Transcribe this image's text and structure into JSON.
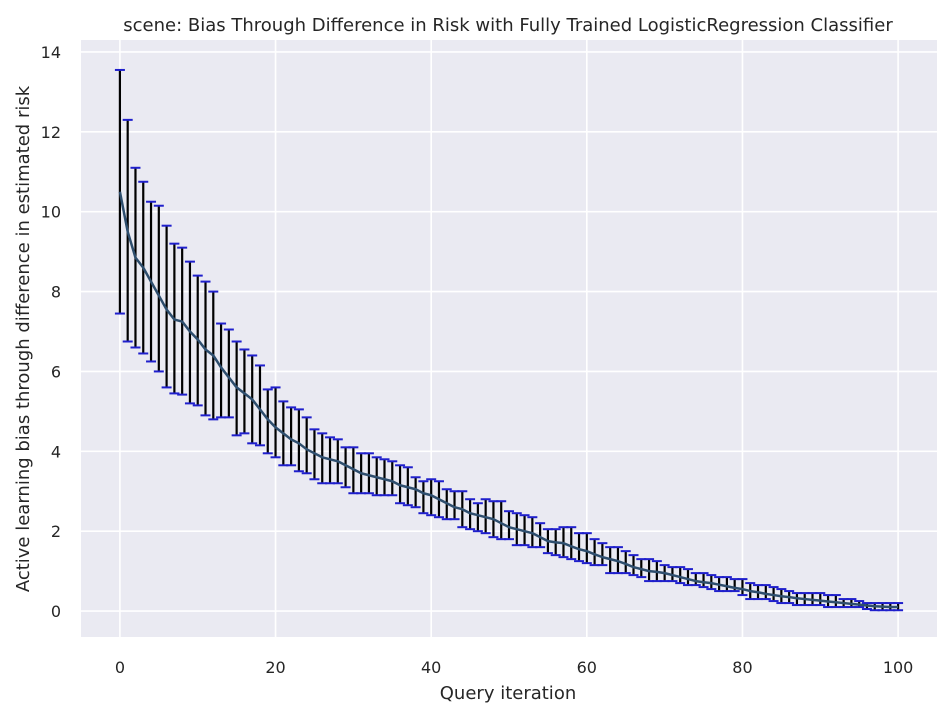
{
  "chart_data": {
    "type": "line",
    "title": "scene: Bias Through Difference in Risk with Fully Trained LogisticRegression Classifier",
    "xlabel": "Query iteration",
    "ylabel": "Active learning bias through difference in estimated risk",
    "xlim": [
      -5,
      105
    ],
    "ylim": [
      -0.65,
      14.3
    ],
    "xticks": [
      0,
      20,
      40,
      60,
      80,
      100
    ],
    "yticks": [
      0,
      2,
      4,
      6,
      8,
      10,
      12,
      14
    ],
    "xtick_labels": [
      "0",
      "20",
      "40",
      "60",
      "80",
      "100"
    ],
    "ytick_labels": [
      "0",
      "2",
      "4",
      "6",
      "8",
      "10",
      "12",
      "14"
    ],
    "grid": true,
    "background": "#eaeaf2",
    "line_color": "#2e4e6e",
    "errorbar_color": "#000000",
    "cap_color": "#1f1fcc",
    "x": [
      0,
      1,
      2,
      3,
      4,
      5,
      6,
      7,
      8,
      9,
      10,
      11,
      12,
      13,
      14,
      15,
      16,
      17,
      18,
      19,
      20,
      21,
      22,
      23,
      24,
      25,
      26,
      27,
      28,
      29,
      30,
      31,
      32,
      33,
      34,
      35,
      36,
      37,
      38,
      39,
      40,
      41,
      42,
      43,
      44,
      45,
      46,
      47,
      48,
      49,
      50,
      51,
      52,
      53,
      54,
      55,
      56,
      57,
      58,
      59,
      60,
      61,
      62,
      63,
      64,
      65,
      66,
      67,
      68,
      69,
      70,
      71,
      72,
      73,
      74,
      75,
      76,
      77,
      78,
      79,
      80,
      81,
      82,
      83,
      84,
      85,
      86,
      87,
      88,
      89,
      90,
      91,
      92,
      93,
      94,
      95,
      96,
      97,
      98,
      99,
      100
    ],
    "series": [
      {
        "mean": [
          10.5,
          9.5,
          8.85,
          8.6,
          8.25,
          7.9,
          7.55,
          7.3,
          7.25,
          7.0,
          6.8,
          6.55,
          6.4,
          6.1,
          5.85,
          5.6,
          5.45,
          5.3,
          5.05,
          4.8,
          4.6,
          4.45,
          4.3,
          4.2,
          4.05,
          3.95,
          3.85,
          3.8,
          3.75,
          3.65,
          3.55,
          3.45,
          3.4,
          3.35,
          3.3,
          3.25,
          3.15,
          3.1,
          3.05,
          2.95,
          2.9,
          2.8,
          2.7,
          2.6,
          2.55,
          2.45,
          2.4,
          2.35,
          2.3,
          2.2,
          2.1,
          2.05,
          2.0,
          1.95,
          1.85,
          1.75,
          1.72,
          1.7,
          1.62,
          1.55,
          1.5,
          1.42,
          1.35,
          1.3,
          1.25,
          1.18,
          1.1,
          1.05,
          1.0,
          0.98,
          0.95,
          0.9,
          0.85,
          0.8,
          0.75,
          0.72,
          0.7,
          0.66,
          0.62,
          0.58,
          0.55,
          0.5,
          0.47,
          0.43,
          0.4,
          0.37,
          0.35,
          0.32,
          0.3,
          0.28,
          0.26,
          0.24,
          0.22,
          0.2,
          0.18,
          0.16,
          0.14,
          0.12,
          0.11,
          0.1,
          0.1
        ],
        "lower": [
          7.45,
          6.75,
          6.6,
          6.45,
          6.25,
          6.0,
          5.6,
          5.45,
          5.42,
          5.2,
          5.15,
          4.9,
          4.8,
          4.85,
          4.85,
          4.4,
          4.45,
          4.2,
          4.15,
          3.95,
          3.85,
          3.65,
          3.65,
          3.5,
          3.45,
          3.3,
          3.2,
          3.2,
          3.2,
          3.1,
          2.95,
          2.95,
          2.95,
          2.9,
          2.9,
          2.9,
          2.7,
          2.65,
          2.6,
          2.45,
          2.4,
          2.35,
          2.3,
          2.3,
          2.1,
          2.05,
          2.0,
          1.95,
          1.85,
          1.8,
          1.8,
          1.65,
          1.65,
          1.6,
          1.6,
          1.45,
          1.4,
          1.35,
          1.3,
          1.25,
          1.2,
          1.15,
          1.15,
          0.95,
          0.95,
          0.95,
          0.9,
          0.85,
          0.75,
          0.75,
          0.75,
          0.75,
          0.7,
          0.65,
          0.65,
          0.6,
          0.55,
          0.5,
          0.5,
          0.5,
          0.4,
          0.3,
          0.3,
          0.3,
          0.25,
          0.2,
          0.2,
          0.15,
          0.15,
          0.15,
          0.15,
          0.1,
          0.1,
          0.1,
          0.1,
          0.1,
          0.05,
          0.02,
          0.02,
          0.02,
          0.02
        ],
        "upper": [
          13.55,
          12.3,
          11.1,
          10.75,
          10.25,
          10.15,
          9.65,
          9.2,
          9.1,
          8.75,
          8.4,
          8.25,
          8.0,
          7.2,
          7.05,
          6.75,
          6.55,
          6.4,
          6.15,
          5.55,
          5.6,
          5.25,
          5.1,
          5.05,
          4.85,
          4.55,
          4.45,
          4.35,
          4.3,
          4.1,
          4.1,
          3.95,
          3.95,
          3.85,
          3.8,
          3.75,
          3.65,
          3.6,
          3.35,
          3.25,
          3.3,
          3.25,
          3.05,
          3.0,
          3.0,
          2.8,
          2.7,
          2.8,
          2.75,
          2.75,
          2.5,
          2.45,
          2.4,
          2.35,
          2.2,
          2.05,
          2.05,
          2.1,
          2.1,
          1.95,
          1.95,
          1.8,
          1.7,
          1.6,
          1.6,
          1.5,
          1.4,
          1.3,
          1.3,
          1.25,
          1.15,
          1.1,
          1.1,
          1.05,
          0.95,
          0.95,
          0.9,
          0.85,
          0.85,
          0.8,
          0.8,
          0.7,
          0.65,
          0.65,
          0.6,
          0.55,
          0.5,
          0.45,
          0.45,
          0.45,
          0.45,
          0.4,
          0.4,
          0.3,
          0.3,
          0.25,
          0.2,
          0.2,
          0.2,
          0.2,
          0.2
        ]
      }
    ]
  }
}
